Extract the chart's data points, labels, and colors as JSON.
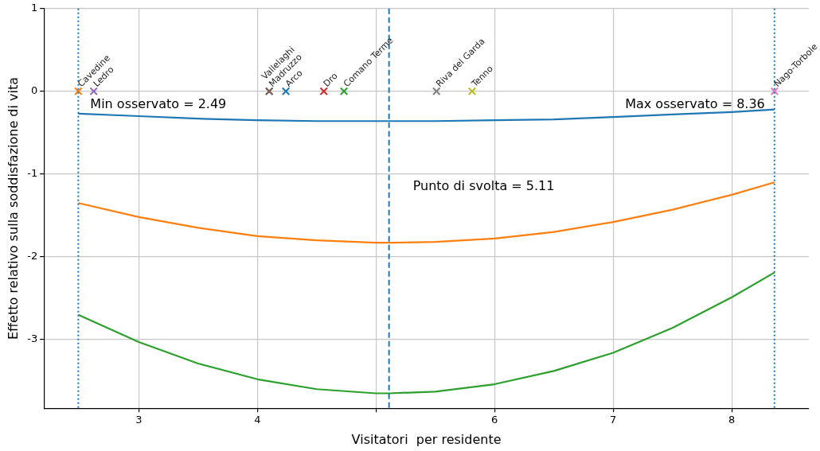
{
  "chart_data": {
    "type": "line",
    "xlabel": "Visitatori  per residente",
    "ylabel": "Effetto relativo sulla soddisfazione di vita",
    "x": [
      2.49,
      3,
      3.5,
      4,
      4.5,
      5,
      5.11,
      5.5,
      6,
      6.5,
      7,
      7.5,
      8,
      8.36
    ],
    "series": [
      {
        "color": "#1f77b4",
        "values": [
          -0.27,
          -0.3,
          -0.33,
          -0.35,
          -0.36,
          -0.36,
          -0.36,
          -0.36,
          -0.35,
          -0.34,
          -0.31,
          -0.28,
          -0.25,
          -0.22
        ]
      },
      {
        "color": "#ff7f0e",
        "values": [
          -1.35,
          -1.52,
          -1.65,
          -1.75,
          -1.8,
          -1.83,
          -1.83,
          -1.82,
          -1.78,
          -1.7,
          -1.58,
          -1.43,
          -1.25,
          -1.1
        ]
      },
      {
        "color": "#2ca02c",
        "values": [
          -2.7,
          -3.03,
          -3.29,
          -3.48,
          -3.6,
          -3.65,
          -3.65,
          -3.63,
          -3.54,
          -3.38,
          -3.16,
          -2.86,
          -2.49,
          -2.19
        ]
      },
      {
        "type": "scatter",
        "marker": "cross",
        "name": "Arco",
        "color": "#1f77b4",
        "x": [
          4.24
        ],
        "values": [
          0
        ]
      },
      {
        "type": "scatter",
        "marker": "cross",
        "name": "Cavedine",
        "color": "#ff7f0e",
        "x": [
          2.49
        ],
        "values": [
          0
        ]
      },
      {
        "type": "scatter",
        "marker": "cross",
        "name": "Comano Terme",
        "color": "#2ca02c",
        "x": [
          4.73
        ],
        "values": [
          0
        ]
      },
      {
        "type": "scatter",
        "marker": "cross",
        "name": "Dro",
        "color": "#d62728",
        "x": [
          4.56
        ],
        "values": [
          0
        ]
      },
      {
        "type": "scatter",
        "marker": "cross",
        "name": "Ledro",
        "color": "#9467bd",
        "x": [
          2.62
        ],
        "values": [
          0
        ]
      },
      {
        "type": "scatter",
        "marker": "cross",
        "name": "Madruzzo",
        "color": "#8c564b",
        "x": [
          4.1
        ],
        "values": [
          0
        ]
      },
      {
        "type": "scatter",
        "marker": "cross",
        "name": "Nago-Torbole",
        "color": "#e377c2",
        "x": [
          8.36
        ],
        "values": [
          0
        ]
      },
      {
        "type": "scatter",
        "marker": "cross",
        "name": "Riva del Garda",
        "color": "#7f7f7f",
        "x": [
          5.51
        ],
        "values": [
          0
        ]
      },
      {
        "type": "scatter",
        "marker": "cross",
        "name": "Tenno",
        "color": "#bcbd22",
        "x": [
          5.81
        ],
        "values": [
          0
        ]
      },
      {
        "type": "scatter",
        "marker": "cross",
        "name": "Vallelaghi",
        "color": "#17becf",
        "x": [
          4.1
        ],
        "values": [
          0
        ]
      }
    ],
    "ref_lines": [
      {
        "axis": "x",
        "value": 2.49,
        "label": "Min osservato = 2.49",
        "color": "#1f77b4",
        "line_style": "dotted"
      },
      {
        "axis": "x",
        "value": 8.36,
        "label": "Max osservato = 8.36",
        "color": "#1f77b4",
        "line_style": "dotted"
      },
      {
        "axis": "x",
        "value": 5.11,
        "label": "Punto di svolta = 5.11",
        "color": "#1f77b4",
        "line_style": "dashed"
      }
    ],
    "xlim": [
      2.2,
      8.65
    ],
    "xticks": [
      3,
      4,
      {
        "value": 5,
        "label": null
      },
      6,
      7,
      8
    ],
    "ylim": [
      -3.83,
      1
    ],
    "yticks": [
      -3,
      -2,
      -1,
      0,
      1
    ],
    "grid": true,
    "legend": false,
    "marker": "none",
    "line_style": "solid"
  }
}
